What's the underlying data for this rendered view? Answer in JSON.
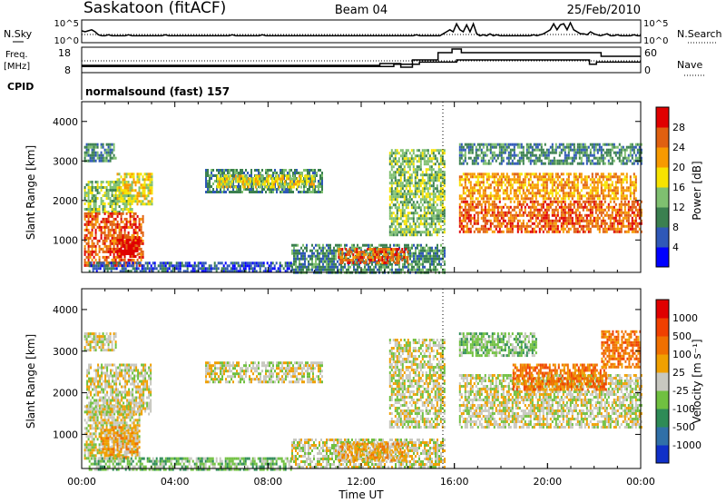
{
  "header": {
    "title": "Saskatoon (fitACF)",
    "beam": "Beam 04",
    "date": "25/Feb/2010"
  },
  "chart_data": [
    {
      "type": "line",
      "panel": "noise",
      "left_label": "N.Sky",
      "right_label": "N.Search",
      "left_ticks": [
        "10^5",
        "10^0"
      ],
      "right_ticks": [
        "10^5",
        "10^0"
      ],
      "series_noise_sky_norm": [
        0.55,
        0.5,
        0.55,
        0.6,
        0.5,
        0.35,
        0.3,
        0.3,
        0.35,
        0.3,
        0.3,
        0.3,
        0.3,
        0.3,
        0.35,
        0.3,
        0.3,
        0.3,
        0.3,
        0.3,
        0.3,
        0.3,
        0.3,
        0.3,
        0.3,
        0.35,
        0.3,
        0.3,
        0.3,
        0.3,
        0.3,
        0.3,
        0.3,
        0.3,
        0.3,
        0.3,
        0.3,
        0.3,
        0.3,
        0.3,
        0.3,
        0.3,
        0.3,
        0.3,
        0.3,
        0.35,
        0.3,
        0.3,
        0.3,
        0.3,
        0.3,
        0.3,
        0.3,
        0.3,
        0.35,
        0.3,
        0.3,
        0.3,
        0.3,
        0.3,
        0.3,
        0.3,
        0.3,
        0.3,
        0.3,
        0.3,
        0.3,
        0.3,
        0.3,
        0.3,
        0.3,
        0.3,
        0.3,
        0.3,
        0.3,
        0.3,
        0.3,
        0.3,
        0.3,
        0.3,
        0.3,
        0.3,
        0.3,
        0.3,
        0.3,
        0.3,
        0.3,
        0.3,
        0.3,
        0.3,
        0.3,
        0.3,
        0.3,
        0.3,
        0.3,
        0.3,
        0.3,
        0.3,
        0.3,
        0.3,
        0.35,
        0.3,
        0.3,
        0.3,
        0.3,
        0.3,
        0.3,
        0.3,
        0.4,
        0.5,
        0.6,
        0.5,
        0.9,
        0.6,
        0.5,
        0.85,
        0.5,
        0.9,
        0.4,
        0.3,
        0.35,
        0.3,
        0.4,
        0.3,
        0.35,
        0.3,
        0.3,
        0.3,
        0.3,
        0.3,
        0.3,
        0.3,
        0.3,
        0.3,
        0.3,
        0.35,
        0.3,
        0.35,
        0.4,
        0.5,
        0.6,
        0.9,
        0.6,
        0.85,
        0.9,
        0.6,
        0.95,
        0.6,
        0.5,
        0.4,
        0.4,
        0.35,
        0.5,
        0.4,
        0.35,
        0.3,
        0.35,
        0.4,
        0.3,
        0.3,
        0.35,
        0.3,
        0.3,
        0.3,
        0.3,
        0.35,
        0.3,
        0.3
      ]
    },
    {
      "type": "line",
      "panel": "frequency",
      "left_label": "Freq.",
      "left_unit": "[MHz]",
      "right_label": "Nave",
      "left_ticks": [
        "18",
        "8"
      ],
      "right_ticks": [
        "60",
        "0"
      ],
      "cpid_label": "CPID",
      "program": "normalsound (fast) 157",
      "freq_steps": [
        {
          "t": 0,
          "v": 10
        },
        {
          "t": 13.4,
          "v": 11
        },
        {
          "t": 14.5,
          "v": 12
        },
        {
          "t": 16.1,
          "v": 13
        },
        {
          "t": 21.8,
          "v": 11
        },
        {
          "t": 22.1,
          "v": 12
        }
      ],
      "nave_steps": [
        {
          "t": 0,
          "v": 15
        },
        {
          "t": 12.8,
          "v": 20
        },
        {
          "t": 13.7,
          "v": 10
        },
        {
          "t": 14.2,
          "v": 30
        },
        {
          "t": 15.3,
          "v": 50
        },
        {
          "t": 15.9,
          "v": 60
        },
        {
          "t": 16.3,
          "v": 50
        },
        {
          "t": 22.3,
          "v": 40
        }
      ]
    },
    {
      "type": "heatmap",
      "panel": "power",
      "ylabel": "Slant Range [km]",
      "ylim": [
        180,
        4500
      ],
      "yticks": [
        1000,
        2000,
        3000,
        4000
      ],
      "colorbar_label": "Power [dB]",
      "colorbar_ticks": [
        "4",
        "8",
        "12",
        "16",
        "20",
        "24",
        "28"
      ],
      "colorbar_colors": [
        "#0000ff",
        "#2f58b8",
        "#3b8050",
        "#7fc070",
        "#f7e300",
        "#f79a00",
        "#e06010",
        "#e00000"
      ],
      "regions": [
        {
          "t0": 0.1,
          "t1": 1.5,
          "r0": 3000,
          "r1": 3450,
          "lvl": 2
        },
        {
          "t0": 0.1,
          "t1": 2.2,
          "r0": 1700,
          "r1": 2500,
          "lvl": 3
        },
        {
          "t0": 1.5,
          "t1": 3.0,
          "r0": 1900,
          "r1": 2700,
          "lvl": 4
        },
        {
          "t0": 0.1,
          "t1": 2.6,
          "r0": 350,
          "r1": 1700,
          "lvl": 6
        },
        {
          "t0": 1.5,
          "t1": 2.5,
          "r0": 600,
          "r1": 1100,
          "lvl": 7
        },
        {
          "t0": 5.3,
          "t1": 10.3,
          "r0": 2200,
          "r1": 2800,
          "lvl": 2
        },
        {
          "t0": 5.8,
          "t1": 10.0,
          "r0": 2350,
          "r1": 2650,
          "lvl": 4
        },
        {
          "t0": 9.0,
          "t1": 15.6,
          "r0": 180,
          "r1": 900,
          "lvl": 2
        },
        {
          "t0": 11.0,
          "t1": 14.0,
          "r0": 450,
          "r1": 800,
          "lvl": 6
        },
        {
          "t0": 13.2,
          "t1": 15.6,
          "r0": 1100,
          "r1": 3300,
          "lvl": 3
        },
        {
          "t0": 16.2,
          "t1": 24.0,
          "r0": 2900,
          "r1": 3450,
          "lvl": 2
        },
        {
          "t0": 16.2,
          "t1": 23.8,
          "r0": 2050,
          "r1": 2700,
          "lvl": 5
        },
        {
          "t0": 16.2,
          "t1": 24.0,
          "r0": 1200,
          "r1": 2000,
          "lvl": 6
        },
        {
          "t0": 0.3,
          "t1": 9.0,
          "r0": 180,
          "r1": 450,
          "lvl": 1
        }
      ]
    },
    {
      "type": "heatmap",
      "panel": "velocity",
      "ylabel": "Slant Range [km]",
      "ylim": [
        180,
        4500
      ],
      "yticks": [
        1000,
        2000,
        3000,
        4000
      ],
      "xticks": [
        "00:00",
        "04:00",
        "08:00",
        "12:00",
        "16:00",
        "20:00",
        "00:00"
      ],
      "xlabel": "Time UT",
      "colorbar_label": "Velocity [m s⁻¹]",
      "colorbar_ticks": [
        "1000",
        "500",
        "100",
        "25",
        "-25",
        "-100",
        "-500",
        "-1000"
      ],
      "colorbar_colors": [
        "#1030c8",
        "#3070a8",
        "#2e8b57",
        "#70c040",
        "#c8c8c0",
        "#f0a000",
        "#f07000",
        "#f04000",
        "#e00000"
      ],
      "regions": [
        {
          "t0": 0.1,
          "t1": 1.5,
          "r0": 3000,
          "r1": 3450,
          "lvl": 4
        },
        {
          "t0": 0.2,
          "t1": 3.0,
          "r0": 1500,
          "r1": 2700,
          "lvl": 4
        },
        {
          "t0": 0.1,
          "t1": 2.5,
          "r0": 400,
          "r1": 1700,
          "lvl": 4
        },
        {
          "t0": 0.8,
          "t1": 2.4,
          "r0": 450,
          "r1": 1200,
          "lvl": 5
        },
        {
          "t0": 5.3,
          "t1": 10.3,
          "r0": 2250,
          "r1": 2750,
          "lvl": 4
        },
        {
          "t0": 9.0,
          "t1": 15.6,
          "r0": 180,
          "r1": 900,
          "lvl": 4
        },
        {
          "t0": 11.0,
          "t1": 14.0,
          "r0": 400,
          "r1": 800,
          "lvl": 5
        },
        {
          "t0": 13.2,
          "t1": 15.6,
          "r0": 1200,
          "r1": 3300,
          "lvl": 4
        },
        {
          "t0": 16.2,
          "t1": 19.5,
          "r0": 2900,
          "r1": 3450,
          "lvl": 3
        },
        {
          "t0": 16.2,
          "t1": 24.0,
          "r0": 1150,
          "r1": 2450,
          "lvl": 4
        },
        {
          "t0": 18.5,
          "t1": 22.5,
          "r0": 2100,
          "r1": 2700,
          "lvl": 6
        },
        {
          "t0": 22.3,
          "t1": 24.0,
          "r0": 2600,
          "r1": 3500,
          "lvl": 6
        },
        {
          "t0": 0.3,
          "t1": 9.0,
          "r0": 180,
          "r1": 450,
          "lvl": 3
        }
      ]
    }
  ]
}
